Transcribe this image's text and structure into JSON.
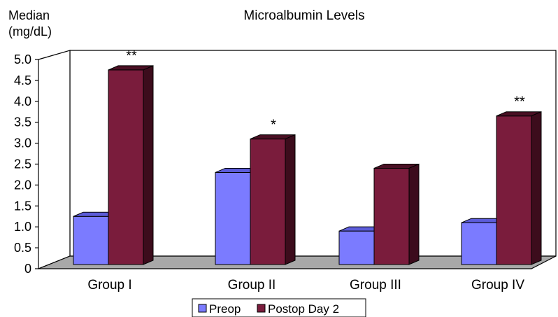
{
  "chart_data": {
    "type": "bar",
    "title": "Microalbumin Levels",
    "ylabel_line1": "Median",
    "ylabel_line2": "(mg/dL)",
    "xlabel": "",
    "categories": [
      "Group I",
      "Group II",
      "Group III",
      "Group IV"
    ],
    "yticks": [
      "0",
      "0.5",
      "1.0",
      "1.5",
      "2.0",
      "2.5",
      "3.0",
      "3.5",
      "4.0",
      "4.5",
      "5.0"
    ],
    "ylim": [
      0,
      5
    ],
    "series": [
      {
        "name": "Preop",
        "values": [
          1.15,
          2.2,
          0.8,
          1.0
        ],
        "color": "#7b7bff"
      },
      {
        "name": "Postop Day 2",
        "values": [
          4.65,
          3.0,
          2.3,
          3.55
        ],
        "color": "#7a1c3c"
      }
    ],
    "annotations": [
      "**",
      "*",
      "",
      "**"
    ],
    "legend_position": "bottom",
    "grid": false
  }
}
